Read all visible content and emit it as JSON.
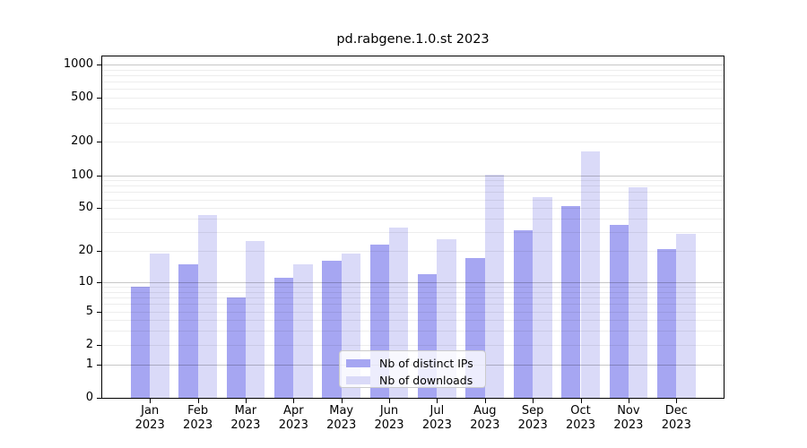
{
  "figure_title": "pd.rabgene.1.0.st 2023",
  "chart_data": {
    "type": "bar",
    "title": "pd.rabgene.1.0.st 2023",
    "categories": [
      "Jan 2023",
      "Feb 2023",
      "Mar 2023",
      "Apr 2023",
      "May 2023",
      "Jun 2023",
      "Jul 2023",
      "Aug 2023",
      "Sep 2023",
      "Oct 2023",
      "Nov 2023",
      "Dec 2023"
    ],
    "x_tick_months": [
      "Jan",
      "Feb",
      "Mar",
      "Apr",
      "May",
      "Jun",
      "Jul",
      "Aug",
      "Sep",
      "Oct",
      "Nov",
      "Dec"
    ],
    "x_tick_year": "2023",
    "series": [
      {
        "name": "Nb of distinct IPs",
        "color": "#a6a6f2",
        "values": [
          9,
          15,
          7,
          11,
          16,
          23,
          12,
          17,
          31,
          52,
          35,
          21
        ]
      },
      {
        "name": "Nb of downloads",
        "color": "#dadaf8",
        "values": [
          19,
          43,
          25,
          15,
          19,
          33,
          26,
          101,
          63,
          164,
          77,
          29
        ]
      }
    ],
    "yscale": "log1p",
    "ylim": [
      0,
      1230
    ],
    "y_tick_values": [
      0,
      1,
      2,
      5,
      10,
      20,
      50,
      100,
      200,
      500,
      1000
    ],
    "y_major_gridlines": [
      1,
      10,
      100,
      1000
    ],
    "y_minor_gridlines": [
      2,
      3,
      4,
      5,
      6,
      7,
      8,
      9,
      20,
      30,
      40,
      50,
      60,
      70,
      80,
      90,
      200,
      300,
      400,
      500,
      600,
      700,
      800,
      900
    ],
    "grid": true,
    "legend_position": "lower center inside"
  }
}
